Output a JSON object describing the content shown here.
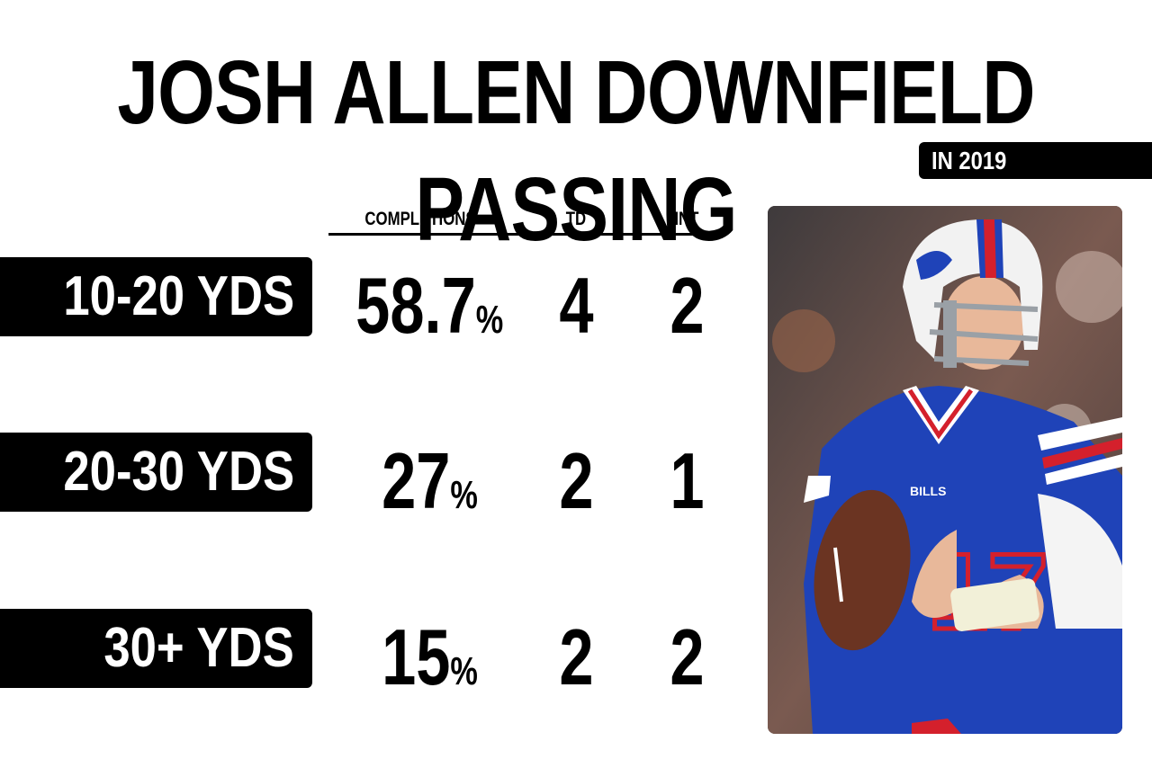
{
  "title": "JOSH ALLEN DOWNFIELD PASSING",
  "subtitle": "IN 2019",
  "columns": [
    "COMPLETIONS",
    "TD",
    "INT"
  ],
  "chart_data": {
    "type": "table",
    "title": "JOSH ALLEN DOWNFIELD PASSING",
    "subtitle": "IN 2019",
    "columns": [
      "COMPLETIONS",
      "TD",
      "INT"
    ],
    "rows": [
      {
        "label": "10-20 YDS",
        "completions": "58.7",
        "td": "4",
        "int": "2"
      },
      {
        "label": "20-30 YDS",
        "completions": "27",
        "td": "2",
        "int": "1"
      },
      {
        "label": "30+ YDS",
        "completions": "15",
        "td": "2",
        "int": "2"
      }
    ]
  },
  "percent_symbol": "%",
  "photo": {
    "jersey_number": "17",
    "team_text": "BILLS",
    "colors": {
      "jersey": "#1f43b8",
      "stripe_red": "#d4202c",
      "helmet": "#f2f2f2",
      "background": "#5a4a48"
    }
  }
}
